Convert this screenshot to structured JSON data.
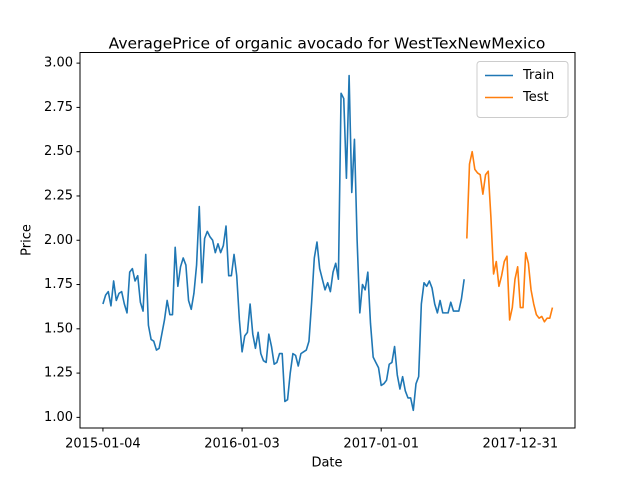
{
  "chart_data": {
    "type": "line",
    "title": "AveragePrice of organic avocado for WestTexNewMexico",
    "x_label": "Date",
    "y_label": "Price",
    "xlim": [
      "2014-11-05",
      "2018-05-23"
    ],
    "xticks": [
      "2015-01-04",
      "2016-01-03",
      "2017-01-01",
      "2017-12-31"
    ],
    "ylim": [
      0.94,
      3.06
    ],
    "yticks": [
      {
        "value": 1,
        "label": "1.00"
      },
      {
        "value": 1.25,
        "label": "1.25"
      },
      {
        "value": 1.5,
        "label": "1.50"
      },
      {
        "value": 1.75,
        "label": "1.75"
      },
      {
        "value": 2,
        "label": "2.00"
      },
      {
        "value": 2.25,
        "label": "2.25"
      },
      {
        "value": 2.5,
        "label": "2.50"
      },
      {
        "value": 2.75,
        "label": "2.75"
      },
      {
        "value": 3,
        "label": "3.00"
      }
    ],
    "grid": false,
    "legend": "upper right",
    "series": [
      {
        "name": "Train",
        "color": "#1f77b4",
        "x": [
          "2015-01-04",
          "2015-01-11",
          "2015-01-18",
          "2015-01-25",
          "2015-02-01",
          "2015-02-08",
          "2015-02-15",
          "2015-02-22",
          "2015-03-01",
          "2015-03-08",
          "2015-03-15",
          "2015-03-22",
          "2015-03-29",
          "2015-04-05",
          "2015-04-12",
          "2015-04-19",
          "2015-04-26",
          "2015-05-03",
          "2015-05-10",
          "2015-05-17",
          "2015-05-24",
          "2015-05-31",
          "2015-06-07",
          "2015-06-14",
          "2015-06-21",
          "2015-06-28",
          "2015-07-05",
          "2015-07-12",
          "2015-07-19",
          "2015-07-26",
          "2015-08-02",
          "2015-08-09",
          "2015-08-16",
          "2015-08-23",
          "2015-08-30",
          "2015-09-06",
          "2015-09-13",
          "2015-09-20",
          "2015-09-27",
          "2015-10-04",
          "2015-10-11",
          "2015-10-18",
          "2015-10-25",
          "2015-11-01",
          "2015-11-08",
          "2015-11-15",
          "2015-11-22",
          "2015-11-29",
          "2015-12-06",
          "2015-12-13",
          "2015-12-20",
          "2015-12-27",
          "2016-01-03",
          "2016-01-10",
          "2016-01-17",
          "2016-01-24",
          "2016-01-31",
          "2016-02-07",
          "2016-02-14",
          "2016-02-21",
          "2016-02-28",
          "2016-03-06",
          "2016-03-13",
          "2016-03-20",
          "2016-03-27",
          "2016-04-03",
          "2016-04-10",
          "2016-04-17",
          "2016-04-24",
          "2016-05-01",
          "2016-05-08",
          "2016-05-15",
          "2016-05-22",
          "2016-05-29",
          "2016-06-05",
          "2016-06-12",
          "2016-06-19",
          "2016-06-26",
          "2016-07-03",
          "2016-07-10",
          "2016-07-17",
          "2016-07-24",
          "2016-07-31",
          "2016-08-07",
          "2016-08-14",
          "2016-08-21",
          "2016-08-28",
          "2016-09-04",
          "2016-09-11",
          "2016-09-18",
          "2016-09-25",
          "2016-10-02",
          "2016-10-09",
          "2016-10-16",
          "2016-10-23",
          "2016-10-30",
          "2016-11-06",
          "2016-11-13",
          "2016-11-20",
          "2016-11-27",
          "2016-12-04",
          "2016-12-11",
          "2016-12-18",
          "2016-12-25",
          "2017-01-01",
          "2017-01-08",
          "2017-01-15",
          "2017-01-22",
          "2017-01-29",
          "2017-02-05",
          "2017-02-12",
          "2017-02-19",
          "2017-02-26",
          "2017-03-05",
          "2017-03-12",
          "2017-03-19",
          "2017-03-26",
          "2017-04-02",
          "2017-04-09",
          "2017-04-16",
          "2017-04-23",
          "2017-04-30",
          "2017-05-07",
          "2017-05-14",
          "2017-05-21",
          "2017-05-28",
          "2017-06-04",
          "2017-06-11",
          "2017-06-18",
          "2017-06-25",
          "2017-07-02",
          "2017-07-09",
          "2017-07-16",
          "2017-07-23",
          "2017-07-30",
          "2017-08-06"
        ],
        "values": [
          1.64,
          1.69,
          1.71,
          1.63,
          1.77,
          1.66,
          1.7,
          1.71,
          1.64,
          1.59,
          1.82,
          1.84,
          1.77,
          1.8,
          1.65,
          1.6,
          1.92,
          1.52,
          1.44,
          1.43,
          1.38,
          1.39,
          1.47,
          1.55,
          1.66,
          1.58,
          1.58,
          1.96,
          1.74,
          1.85,
          1.9,
          1.86,
          1.66,
          1.61,
          1.7,
          1.86,
          2.19,
          1.76,
          2.01,
          2.05,
          2.02,
          2.0,
          1.93,
          1.98,
          1.93,
          1.97,
          2.08,
          1.8,
          1.8,
          1.92,
          1.8,
          1.55,
          1.37,
          1.46,
          1.48,
          1.64,
          1.47,
          1.39,
          1.48,
          1.36,
          1.32,
          1.31,
          1.47,
          1.4,
          1.3,
          1.31,
          1.36,
          1.36,
          1.09,
          1.1,
          1.25,
          1.36,
          1.35,
          1.29,
          1.36,
          1.37,
          1.38,
          1.43,
          1.65,
          1.9,
          1.99,
          1.84,
          1.78,
          1.72,
          1.76,
          1.71,
          1.82,
          1.87,
          1.78,
          2.83,
          2.8,
          2.35,
          2.93,
          2.27,
          2.57,
          2.0,
          1.59,
          1.75,
          1.72,
          1.82,
          1.53,
          1.34,
          1.31,
          1.28,
          1.18,
          1.19,
          1.21,
          1.3,
          1.31,
          1.4,
          1.24,
          1.16,
          1.23,
          1.15,
          1.11,
          1.11,
          1.04,
          1.19,
          1.23,
          1.64,
          1.76,
          1.74,
          1.77,
          1.73,
          1.64,
          1.59,
          1.66,
          1.59,
          1.59,
          1.59,
          1.65,
          1.6,
          1.6,
          1.6,
          1.67,
          1.78
        ]
      },
      {
        "name": "Test",
        "color": "#ff7f0e",
        "x": [
          "2017-08-13",
          "2017-08-20",
          "2017-08-27",
          "2017-09-03",
          "2017-09-10",
          "2017-09-17",
          "2017-09-24",
          "2017-10-01",
          "2017-10-08",
          "2017-10-15",
          "2017-10-22",
          "2017-10-29",
          "2017-11-05",
          "2017-11-12",
          "2017-11-19",
          "2017-11-26",
          "2017-12-03",
          "2017-12-10",
          "2017-12-17",
          "2017-12-24",
          "2017-12-31",
          "2018-01-07",
          "2018-01-14",
          "2018-01-21",
          "2018-01-28",
          "2018-02-04",
          "2018-02-11",
          "2018-02-18",
          "2018-02-25",
          "2018-03-04",
          "2018-03-11",
          "2018-03-18",
          "2018-03-25"
        ],
        "values": [
          2.01,
          2.43,
          2.5,
          2.4,
          2.38,
          2.37,
          2.26,
          2.37,
          2.39,
          2.13,
          1.81,
          1.88,
          1.74,
          1.8,
          1.88,
          1.91,
          1.55,
          1.62,
          1.78,
          1.85,
          1.62,
          1.62,
          1.93,
          1.87,
          1.72,
          1.64,
          1.58,
          1.56,
          1.57,
          1.54,
          1.56,
          1.56,
          1.62
        ]
      }
    ]
  }
}
